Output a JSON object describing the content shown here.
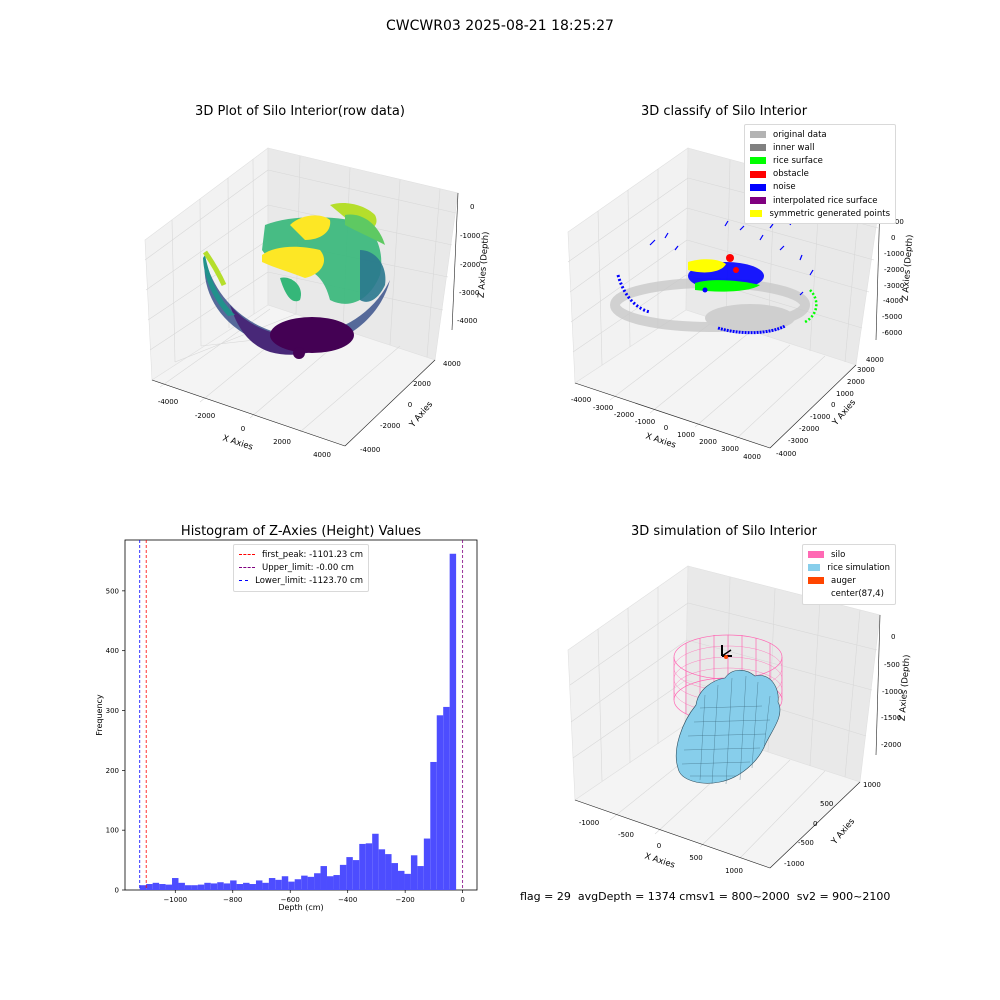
{
  "suptitle": "CWCWR03 2025-08-21 18:25:27",
  "plot1": {
    "title": "3D Plot of Silo Interior(row data)",
    "xlabel": "X Axies",
    "ylabel": "Y Axies",
    "zlabel": "Z Axies (Depth)",
    "x_ticks": [
      "-4000",
      "-2000",
      "0",
      "2000",
      "4000"
    ],
    "y_ticks": [
      "-4000",
      "-2000",
      "0",
      "2000",
      "4000"
    ],
    "z_ticks": [
      "0",
      "-1000",
      "-2000",
      "-3000",
      "-4000"
    ]
  },
  "plot2": {
    "title": "3D classify of Silo Interior",
    "xlabel": "X Axies",
    "ylabel": "Y Axies",
    "zlabel": "Z Axies (Depth)",
    "x_ticks": [
      "-4000",
      "-3000",
      "-2000",
      "-1000",
      "0",
      "1000",
      "2000",
      "3000",
      "4000"
    ],
    "y_ticks": [
      "4000",
      "3000",
      "2000",
      "1000",
      "0",
      "-1000",
      "-2000",
      "-3000",
      "-4000"
    ],
    "z_ticks": [
      "1000",
      "0",
      "-1000",
      "-2000",
      "-3000",
      "-4000",
      "-5000",
      "-6000"
    ],
    "legend": [
      {
        "label": "original data",
        "color": "#b3b3b3"
      },
      {
        "label": "inner wall",
        "color": "#808080"
      },
      {
        "label": "rice surface",
        "color": "#00ff00"
      },
      {
        "label": "obstacle",
        "color": "#ff0000"
      },
      {
        "label": "noise",
        "color": "#0000ff"
      },
      {
        "label": "interpolated rice surface",
        "color": "#800080"
      },
      {
        "label": "symmetric generated points",
        "color": "#ffff00"
      }
    ]
  },
  "histogram": {
    "title": "Histogram of Z-Axies (Height) Values",
    "xlabel": "Depth (cm)",
    "ylabel": "Frequency",
    "legend": [
      {
        "label": "first_peak: -1101.23 cm",
        "color": "#ff0000"
      },
      {
        "label": "Upper_limit: -0.00 cm",
        "color": "#800080"
      },
      {
        "label": "Lower_limit: -1123.70 cm",
        "color": "#0000ff"
      }
    ]
  },
  "plot4": {
    "title": "3D simulation of Silo Interior",
    "xlabel": "X Axies",
    "ylabel": "Y Axies",
    "zlabel": "Z Axies (Depth)",
    "x_ticks": [
      "-1000",
      "-500",
      "0",
      "500",
      "1000"
    ],
    "y_ticks": [
      "1000",
      "500",
      "0",
      "-500",
      "-1000"
    ],
    "z_ticks": [
      "0",
      "-500",
      "-1000",
      "-1500",
      "-2000"
    ],
    "legend": [
      {
        "label": "silo",
        "color": "#ff69b4"
      },
      {
        "label": "rice simulation",
        "color": "#87ceeb"
      },
      {
        "label": "auger",
        "color": "#ff4500"
      },
      {
        "label": "center(87,4)",
        "color": "#ffffff"
      }
    ]
  },
  "footer": {
    "flag": "flag = 29",
    "avg": "avgDepth = 1374 cm",
    "sv1": "sv1 = 800~2000",
    "sv2": "sv2 = 900~2100"
  },
  "chart_data": [
    {
      "type": "scatter",
      "title": "3D Plot of Silo Interior(row data)",
      "xlabel": "X Axies",
      "ylabel": "Y Axies",
      "zlabel": "Z Axies (Depth)",
      "xlim": [
        -4500,
        4500
      ],
      "ylim": [
        -4500,
        4500
      ],
      "zlim": [
        -4500,
        500
      ],
      "grid": true
    },
    {
      "type": "scatter",
      "title": "3D classify of Silo Interior",
      "xlabel": "X Axies",
      "ylabel": "Y Axies",
      "zlabel": "Z Axies (Depth)",
      "xlim": [
        -4000,
        4000
      ],
      "ylim": [
        -4000,
        4000
      ],
      "zlim": [
        -6000,
        1000
      ],
      "legend_position": "top-right",
      "grid": true
    },
    {
      "type": "bar",
      "title": "Histogram of Z-Axies (Height) Values",
      "xlabel": "Depth (cm)",
      "ylabel": "Frequency",
      "xlim": [
        -1175,
        50
      ],
      "ylim": [
        0,
        585
      ],
      "x_ticks": [
        -1000,
        -800,
        -600,
        -400,
        -200,
        0
      ],
      "y_ticks": [
        0,
        100,
        200,
        300,
        400,
        500
      ],
      "bin_width": 22.47,
      "bin_start": -1123.7,
      "values": [
        8,
        10,
        12,
        10,
        9,
        20,
        12,
        8,
        8,
        9,
        12,
        11,
        13,
        11,
        16,
        10,
        12,
        10,
        16,
        12,
        20,
        17,
        23,
        14,
        18,
        24,
        22,
        28,
        40,
        23,
        25,
        42,
        55,
        50,
        77,
        78,
        94,
        68,
        60,
        45,
        32,
        27,
        58,
        40,
        86,
        214,
        292,
        306,
        562
      ],
      "vlines": [
        {
          "name": "first_peak",
          "x": -1101.23,
          "color": "#ff0000"
        },
        {
          "name": "Upper_limit",
          "x": 0,
          "color": "#800080"
        },
        {
          "name": "Lower_limit",
          "x": -1123.7,
          "color": "#0000ff"
        }
      ],
      "legend_position": "top-center"
    },
    {
      "type": "scatter",
      "title": "3D simulation of Silo Interior",
      "xlabel": "X Axies",
      "ylabel": "Y Axies",
      "zlabel": "Z Axies (Depth)",
      "xlim": [
        -1200,
        1200
      ],
      "ylim": [
        -1200,
        1200
      ],
      "zlim": [
        -2200,
        200
      ],
      "legend_position": "top-right",
      "grid": true
    }
  ]
}
